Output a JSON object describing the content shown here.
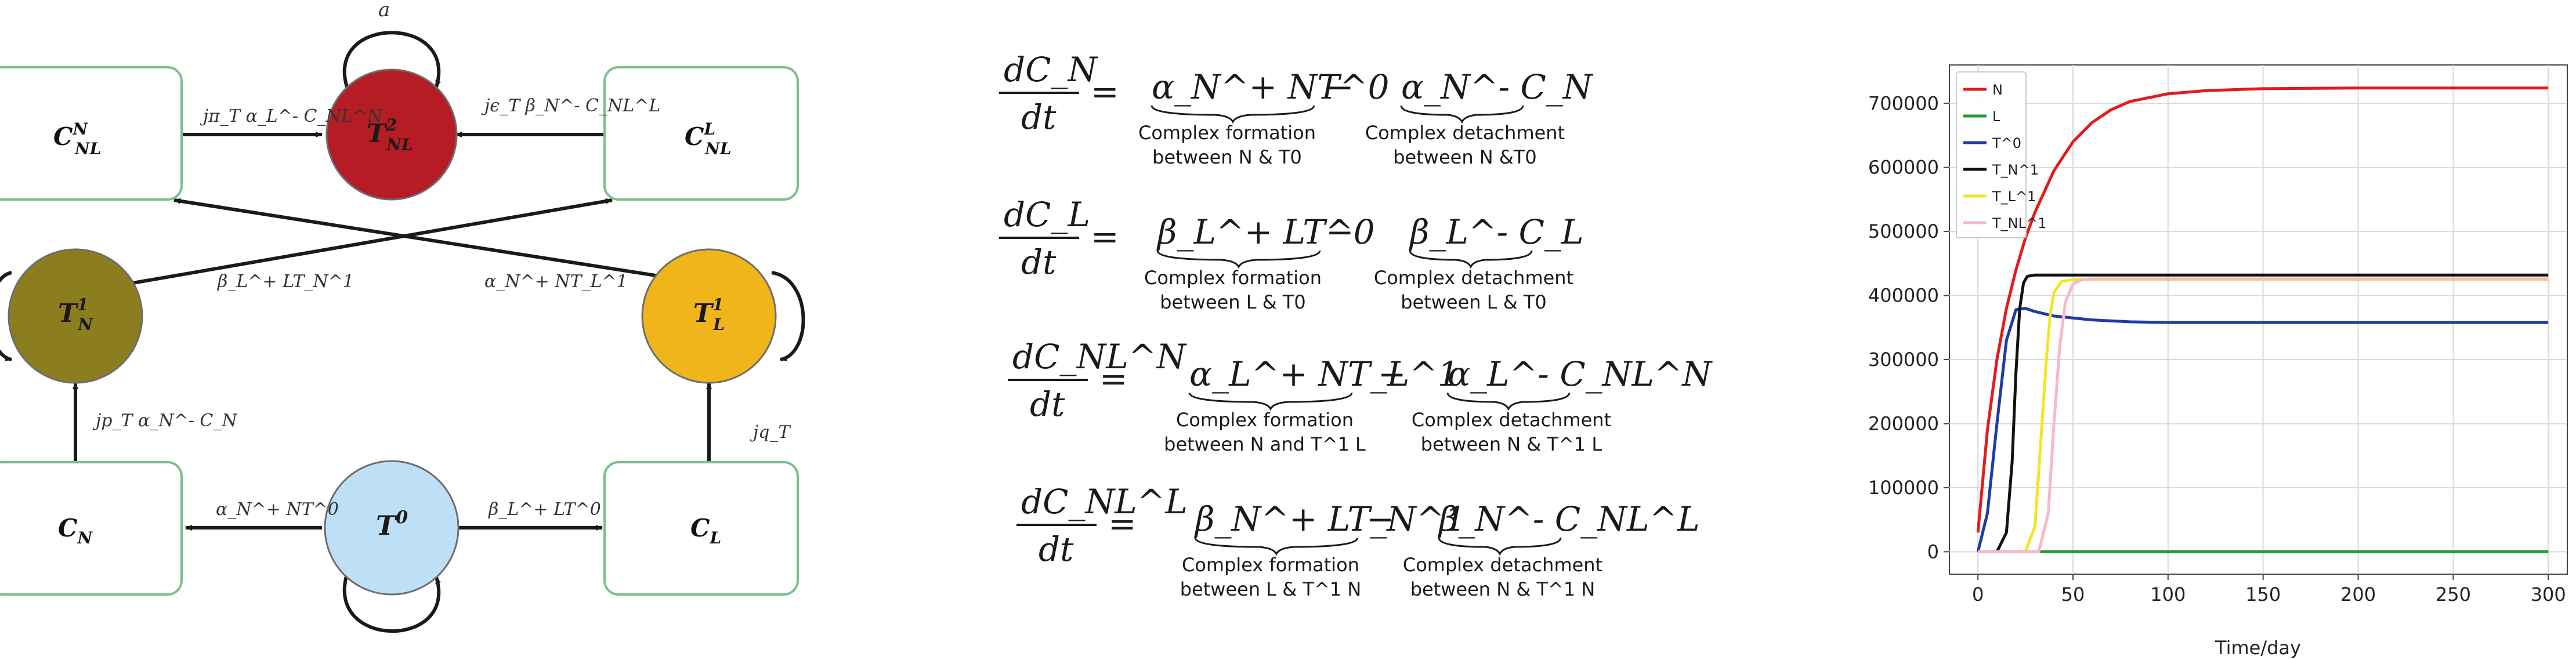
{
  "diagram": {
    "title": "",
    "nodes": {
      "t2_nl": {
        "base": "T",
        "sup": "2",
        "sub": "NL",
        "fill": "#b51c24"
      },
      "c_nl_n": {
        "base": "C",
        "sup": "N",
        "sub": "NL"
      },
      "c_nl_l": {
        "base": "C",
        "sup": "L",
        "sub": "NL"
      },
      "t1_n": {
        "base": "T",
        "sup": "1",
        "sub": "N",
        "fill": "#8c7d1f"
      },
      "t1_l": {
        "base": "T",
        "sup": "1",
        "sub": "L",
        "fill": "#f1b51c"
      },
      "c_n": {
        "base": "C",
        "sub": "N"
      },
      "t0": {
        "base": "T",
        "sup": "0",
        "fill": "#bde0f6"
      },
      "c_l": {
        "base": "C",
        "sub": "L"
      }
    },
    "edge_labels": {
      "self_loop_top": "a",
      "cnln_to_t2": "jπ_T α_L^- C_NL^N",
      "cnll_to_t2": "jϵ_T β_N^- C_NL^L",
      "cross_left": "β_L^+ LT_N^1",
      "cross_right": "α_N^+ NT_L^1",
      "cn_to_t1n": "jp_T α_N^- C_N",
      "cl_to_t1l": "jq_T",
      "t0_to_cn": "α_N^+ NT^0",
      "t0_to_cl": "β_L^+ LT^0"
    },
    "colors": {
      "box_border": "#7bbf8e",
      "edge": "#1a1a1a"
    }
  },
  "equations": [
    {
      "lhs_num": "dC_N",
      "lhs_den": "dt",
      "term1": "α_N^+ NT^0",
      "term1_note": [
        "Complex formation",
        "between N & T0"
      ],
      "op": "−",
      "term2": "α_N^- C_N",
      "term2_note": [
        "Complex detachment",
        "between N &T0"
      ]
    },
    {
      "lhs_num": "dC_L",
      "lhs_den": "dt",
      "term1": "β_L^+ LT^0",
      "term1_note": [
        "Complex formation",
        "between L & T0"
      ],
      "op": "−",
      "term2": "β_L^- C_L",
      "term2_note": [
        "Complex detachment",
        "between L & T0"
      ]
    },
    {
      "lhs_num": "dC_NL^N",
      "lhs_den": "dt",
      "term1": "α_L^+ NT_L^1",
      "term1_note": [
        "Complex formation",
        "between N and T^1  L"
      ],
      "op": "−",
      "term2": "α_L^- C_NL^N",
      "term2_note": [
        "Complex detachment",
        "between N & T^1  L"
      ]
    },
    {
      "lhs_num": "dC_NL^L",
      "lhs_den": "dt",
      "term1": "β_N^+ LT_N^1",
      "term1_note": [
        "Complex formation",
        "between L & T^1  N"
      ],
      "op": "−",
      "term2": "β_N^- C_NL^L",
      "term2_note": [
        "Complex detachment",
        "between N & T^1  N"
      ]
    }
  ],
  "equals_sign": "=",
  "chart_data": {
    "type": "line",
    "title": "",
    "xlabel": "Time/day",
    "ylabel": "",
    "xlim": [
      -15,
      310
    ],
    "ylim": [
      -35000,
      760000
    ],
    "xticks": [
      0,
      50,
      100,
      150,
      200,
      250,
      300
    ],
    "yticks": [
      0,
      100000,
      200000,
      300000,
      400000,
      500000,
      600000,
      700000
    ],
    "grid": true,
    "legend_position": "top-left",
    "series": [
      {
        "name": "N",
        "color": "#e41a1c",
        "x": [
          0,
          5,
          10,
          15,
          20,
          25,
          30,
          40,
          50,
          60,
          70,
          80,
          100,
          120,
          150,
          200,
          250,
          300
        ],
        "y": [
          30000,
          190000,
          300000,
          380000,
          440000,
          490000,
          530000,
          595000,
          640000,
          670000,
          690000,
          703000,
          715000,
          720000,
          723000,
          724000,
          724000,
          724000
        ]
      },
      {
        "name": "L",
        "color": "#1f9a34",
        "x": [
          0,
          50,
          100,
          150,
          200,
          250,
          300
        ],
        "y": [
          0,
          0,
          0,
          0,
          0,
          0,
          0
        ]
      },
      {
        "name": "T^0",
        "color": "#1f3aa8",
        "x": [
          0,
          5,
          10,
          15,
          20,
          25,
          30,
          40,
          60,
          80,
          100,
          150,
          200,
          250,
          300
        ],
        "y": [
          0,
          60000,
          200000,
          330000,
          378000,
          380000,
          375000,
          368000,
          362000,
          359000,
          358000,
          358000,
          358000,
          358000,
          358000
        ]
      },
      {
        "name": "T_N^1",
        "color": "#111111",
        "x": [
          0,
          10,
          15,
          18,
          20,
          22,
          24,
          26,
          30,
          50,
          100,
          150,
          200,
          250,
          300
        ],
        "y": [
          0,
          0,
          30000,
          140000,
          280000,
          380000,
          420000,
          430000,
          432000,
          432000,
          432000,
          432000,
          432000,
          432000,
          432000
        ]
      },
      {
        "name": "T_L^1",
        "color": "#f2e626",
        "x": [
          0,
          25,
          30,
          33,
          36,
          38,
          40,
          44,
          50,
          100,
          150,
          200,
          250,
          300
        ],
        "y": [
          0,
          0,
          40000,
          170000,
          300000,
          370000,
          405000,
          422000,
          425000,
          425000,
          425000,
          425000,
          425000,
          425000
        ]
      },
      {
        "name": "T_NL^1",
        "color": "#f7b8c8",
        "x": [
          0,
          32,
          37,
          40,
          43,
          46,
          50,
          55,
          60,
          100,
          150,
          200,
          250,
          300
        ],
        "y": [
          0,
          0,
          60000,
          200000,
          320000,
          390000,
          418000,
          425000,
          426000,
          426000,
          426000,
          426000,
          426000,
          426000
        ]
      }
    ]
  }
}
